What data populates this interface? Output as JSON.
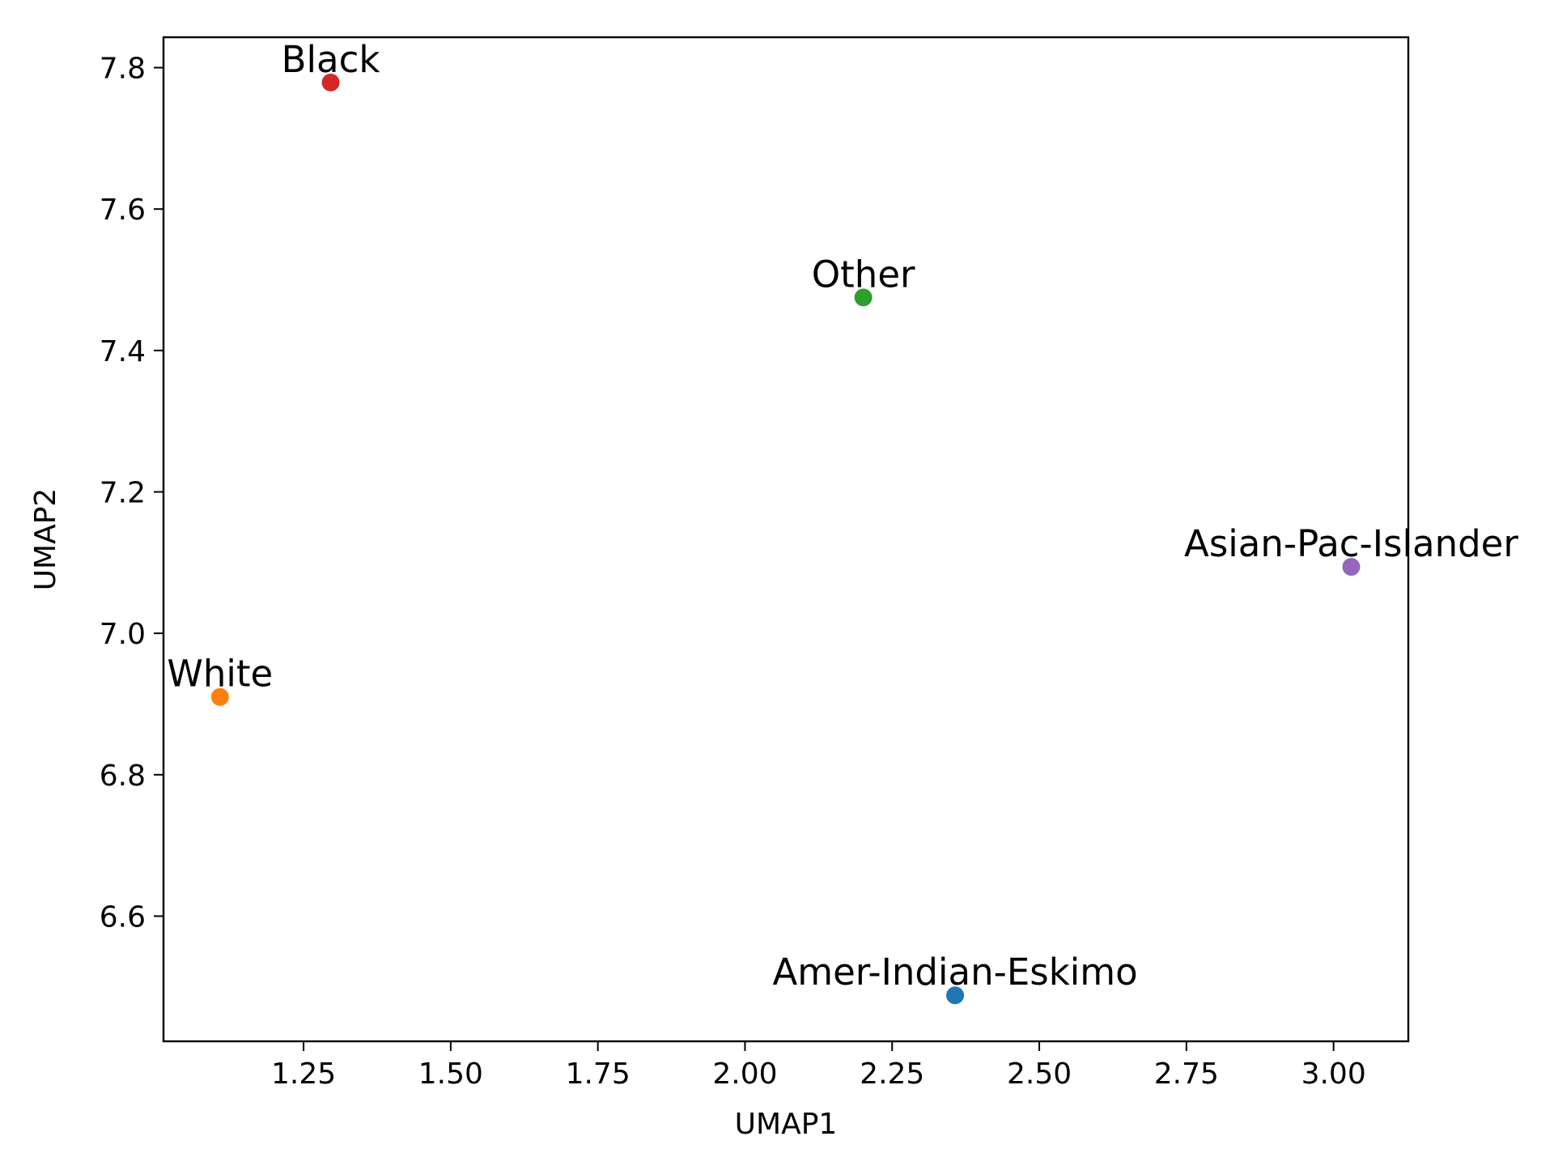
{
  "chart_data": {
    "type": "scatter",
    "title": "",
    "xlabel": "UMAP1",
    "ylabel": "UMAP2",
    "xlim": [
      1.012,
      3.127
    ],
    "ylim": [
      6.423,
      7.843
    ],
    "grid": false,
    "legend": "none",
    "x_ticks": [
      1.25,
      1.5,
      1.75,
      2.0,
      2.25,
      2.5,
      2.75,
      3.0
    ],
    "x_tick_labels": [
      "1.25",
      "1.50",
      "1.75",
      "2.00",
      "2.25",
      "2.50",
      "2.75",
      "3.00"
    ],
    "y_ticks": [
      6.6,
      6.8,
      7.0,
      7.2,
      7.4,
      7.6,
      7.8
    ],
    "y_tick_labels": [
      "6.6",
      "6.8",
      "7.0",
      "7.2",
      "7.4",
      "7.6",
      "7.8"
    ],
    "points": [
      {
        "label": "Amer-Indian-Eskimo",
        "x": 2.357,
        "y": 6.488,
        "color": "#1f77b4"
      },
      {
        "label": "White",
        "x": 1.108,
        "y": 6.91,
        "color": "#ff7f0e"
      },
      {
        "label": "Other",
        "x": 2.201,
        "y": 7.475,
        "color": "#2ca02c"
      },
      {
        "label": "Black",
        "x": 1.296,
        "y": 7.779,
        "color": "#d62728"
      },
      {
        "label": "Asian-Pac-Islander",
        "x": 3.03,
        "y": 7.094,
        "color": "#9467bd"
      }
    ]
  }
}
